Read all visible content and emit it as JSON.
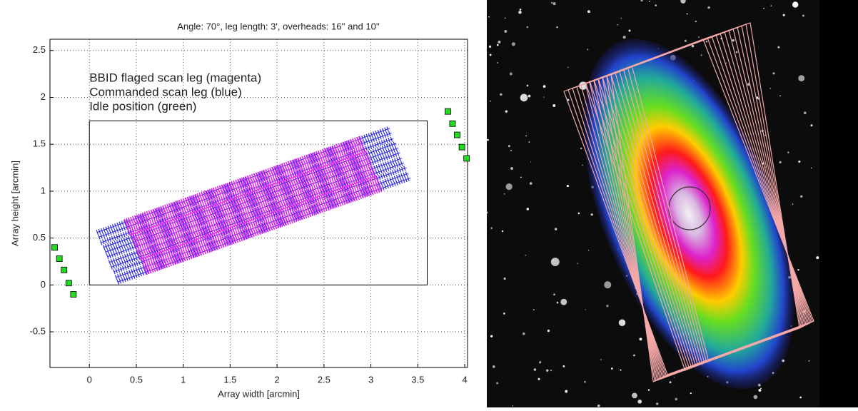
{
  "chart_data": {
    "type": "scan-map",
    "title": "Angle: 70°, leg length: 3', overheads: 16'' and 10''",
    "xlabel": "Array width [arcmin]",
    "ylabel": "Array height [arcmin]",
    "annotations": [
      "BBID flaged scan leg (magenta)",
      "Commanded scan leg (blue)",
      "Idle position (green)"
    ],
    "xlim": [
      -0.42,
      4.03
    ],
    "ylim": [
      -0.88,
      2.62
    ],
    "xticks": [
      0,
      0.5,
      1,
      1.5,
      2,
      2.5,
      3,
      3.5,
      4
    ],
    "yticks": [
      -0.5,
      0,
      0.5,
      1,
      1.5,
      2,
      2.5
    ],
    "grid": true,
    "field_box": {
      "x": [
        0,
        3.6
      ],
      "y": [
        0,
        1.75
      ]
    },
    "commanded_color": "#2a2adf",
    "flagged_color": "#ee22ee",
    "idle_color": "#22dd22",
    "commanded_legs": [
      {
        "x": [
          0.08,
          3.2
        ],
        "y": [
          0.56,
          1.67
        ]
      },
      {
        "x": [
          0.1,
          3.22
        ],
        "y": [
          0.51,
          1.62
        ]
      },
      {
        "x": [
          0.12,
          3.24
        ],
        "y": [
          0.45,
          1.56
        ]
      },
      {
        "x": [
          0.15,
          3.27
        ],
        "y": [
          0.4,
          1.51
        ]
      },
      {
        "x": [
          0.17,
          3.29
        ],
        "y": [
          0.35,
          1.46
        ]
      },
      {
        "x": [
          0.19,
          3.31
        ],
        "y": [
          0.3,
          1.41
        ]
      },
      {
        "x": [
          0.21,
          3.33
        ],
        "y": [
          0.24,
          1.35
        ]
      },
      {
        "x": [
          0.23,
          3.35
        ],
        "y": [
          0.19,
          1.3
        ]
      },
      {
        "x": [
          0.26,
          3.38
        ],
        "y": [
          0.14,
          1.25
        ]
      },
      {
        "x": [
          0.28,
          3.4
        ],
        "y": [
          0.08,
          1.19
        ]
      },
      {
        "x": [
          0.3,
          3.42
        ],
        "y": [
          0.03,
          1.14
        ]
      }
    ],
    "flagged_legs": [
      {
        "x": [
          0.38,
          2.9
        ],
        "y": [
          0.67,
          1.56
        ]
      },
      {
        "x": [
          0.4,
          2.92
        ],
        "y": [
          0.62,
          1.51
        ]
      },
      {
        "x": [
          0.42,
          2.94
        ],
        "y": [
          0.56,
          1.45
        ]
      },
      {
        "x": [
          0.45,
          2.97
        ],
        "y": [
          0.51,
          1.4
        ]
      },
      {
        "x": [
          0.47,
          2.99
        ],
        "y": [
          0.46,
          1.35
        ]
      },
      {
        "x": [
          0.49,
          3.01
        ],
        "y": [
          0.41,
          1.3
        ]
      },
      {
        "x": [
          0.51,
          3.03
        ],
        "y": [
          0.35,
          1.24
        ]
      },
      {
        "x": [
          0.53,
          3.05
        ],
        "y": [
          0.3,
          1.19
        ]
      },
      {
        "x": [
          0.56,
          3.08
        ],
        "y": [
          0.25,
          1.14
        ]
      },
      {
        "x": [
          0.58,
          3.1
        ],
        "y": [
          0.19,
          1.08
        ]
      },
      {
        "x": [
          0.6,
          3.12
        ],
        "y": [
          0.14,
          1.03
        ]
      }
    ],
    "idle_positions": {
      "x": [
        -0.37,
        -0.32,
        -0.27,
        -0.22,
        -0.17,
        3.82,
        3.87,
        3.92,
        3.97,
        4.02
      ],
      "y": [
        0.4,
        0.28,
        0.16,
        0.02,
        -0.1,
        1.85,
        1.72,
        1.6,
        1.47,
        1.35
      ]
    }
  }
}
